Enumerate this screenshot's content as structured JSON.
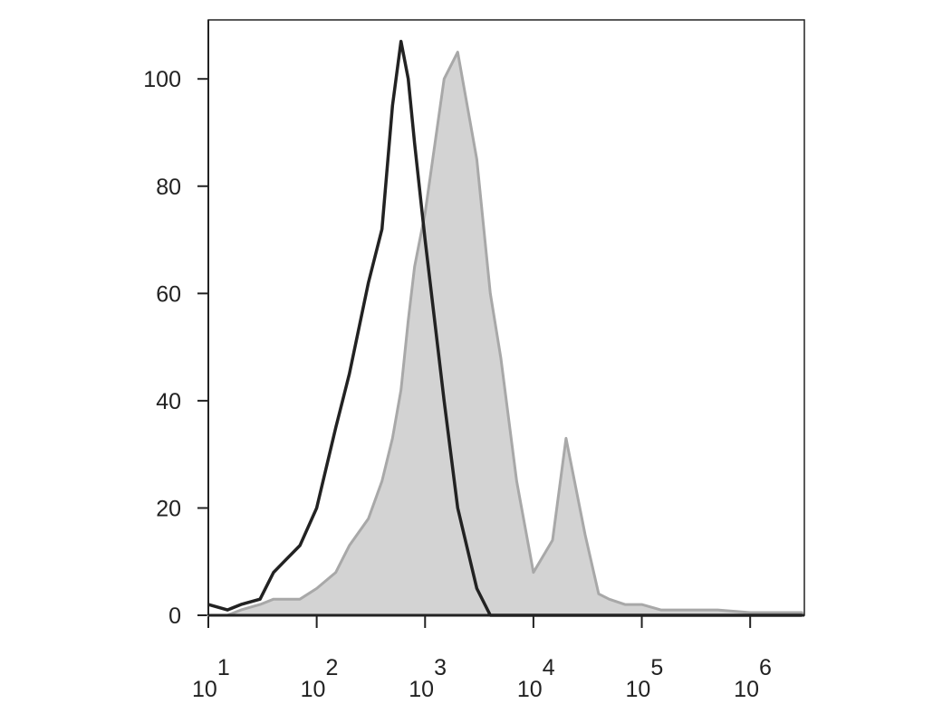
{
  "chart_data": {
    "type": "histogram-overlay",
    "x": [
      10,
      15,
      20,
      30,
      40,
      50,
      70,
      100,
      150,
      200,
      300,
      400,
      500,
      600,
      700,
      800,
      1000,
      1500,
      2000,
      3000,
      4000,
      5000,
      7000,
      10000,
      15000,
      20000,
      30000,
      40000,
      50000,
      70000,
      100000,
      150000,
      200000,
      300000,
      500000,
      1000000,
      2000000,
      3000000
    ],
    "series": [
      {
        "color": "#d3d3d3",
        "edge": "#a8a8a8",
        "fill": true,
        "values": [
          0,
          0,
          1,
          2,
          3,
          3,
          3,
          5,
          8,
          13,
          18,
          25,
          33,
          42,
          55,
          65,
          75,
          100,
          105,
          85,
          60,
          48,
          25,
          8,
          14,
          33,
          15,
          4,
          3,
          2,
          2,
          1,
          1,
          1,
          1,
          0.5,
          0.5,
          0.5
        ]
      },
      {
        "color": "#222222",
        "fill": false,
        "values": [
          2,
          1,
          2,
          3,
          8,
          10,
          13,
          20,
          35,
          45,
          62,
          72,
          95,
          107,
          100,
          88,
          70,
          40,
          20,
          5,
          0,
          0,
          0,
          0,
          0,
          0,
          0,
          0,
          0,
          0,
          0,
          0,
          0,
          0,
          0,
          0,
          0,
          0
        ]
      }
    ],
    "xscale": "log",
    "xlim": [
      10,
      3162278
    ],
    "xticks": [
      {
        "value": 10,
        "label": "10",
        "sup": "1"
      },
      {
        "value": 100,
        "label": "10",
        "sup": "2"
      },
      {
        "value": 1000,
        "label": "10",
        "sup": "3"
      },
      {
        "value": 10000,
        "label": "10",
        "sup": "4"
      },
      {
        "value": 100000,
        "label": "10",
        "sup": "5"
      },
      {
        "value": 1000000,
        "label": "10",
        "sup": "6"
      }
    ],
    "ylim": [
      0,
      111
    ],
    "yticks": [
      0,
      20,
      40,
      60,
      80,
      100
    ]
  }
}
